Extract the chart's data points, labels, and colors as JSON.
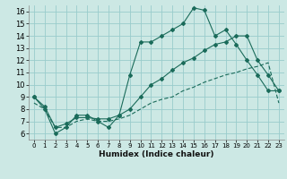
{
  "xlabel": "Humidex (Indice chaleur)",
  "bg_color": "#cce8e4",
  "grid_color": "#99cccc",
  "line_color": "#1a6b5a",
  "xlim": [
    -0.5,
    23.5
  ],
  "ylim": [
    5.5,
    16.5
  ],
  "xticks": [
    0,
    1,
    2,
    3,
    4,
    5,
    6,
    7,
    8,
    9,
    10,
    11,
    12,
    13,
    14,
    15,
    16,
    17,
    18,
    19,
    20,
    21,
    22,
    23
  ],
  "yticks": [
    6,
    7,
    8,
    9,
    10,
    11,
    12,
    13,
    14,
    15,
    16
  ],
  "line1_x": [
    0,
    1,
    2,
    3,
    4,
    5,
    6,
    7,
    8,
    9,
    10,
    11,
    12,
    13,
    14,
    15,
    16,
    17,
    18,
    19,
    20,
    21,
    22,
    23
  ],
  "line1_y": [
    9.0,
    8.0,
    6.0,
    6.5,
    7.5,
    7.5,
    7.0,
    6.5,
    7.5,
    10.8,
    13.5,
    13.5,
    14.0,
    14.5,
    15.0,
    16.3,
    16.1,
    14.0,
    14.5,
    13.3,
    12.0,
    10.8,
    9.5,
    9.5
  ],
  "line2_x": [
    0,
    1,
    2,
    3,
    4,
    5,
    6,
    7,
    8,
    9,
    10,
    11,
    12,
    13,
    14,
    15,
    16,
    17,
    18,
    19,
    20,
    21,
    22,
    23
  ],
  "line2_y": [
    9.0,
    8.2,
    6.5,
    6.8,
    7.3,
    7.3,
    7.2,
    7.2,
    7.5,
    8.0,
    9.0,
    10.0,
    10.5,
    11.2,
    11.8,
    12.2,
    12.8,
    13.3,
    13.5,
    14.0,
    14.0,
    12.0,
    10.8,
    9.5
  ],
  "line3_x": [
    0,
    1,
    2,
    3,
    4,
    5,
    6,
    7,
    8,
    9,
    10,
    11,
    12,
    13,
    14,
    15,
    16,
    17,
    18,
    19,
    20,
    21,
    22,
    23
  ],
  "line3_y": [
    8.5,
    8.0,
    6.5,
    6.5,
    7.0,
    7.2,
    7.0,
    7.0,
    7.2,
    7.5,
    8.0,
    8.5,
    8.8,
    9.0,
    9.5,
    9.8,
    10.2,
    10.5,
    10.8,
    11.0,
    11.3,
    11.5,
    11.8,
    8.5
  ]
}
